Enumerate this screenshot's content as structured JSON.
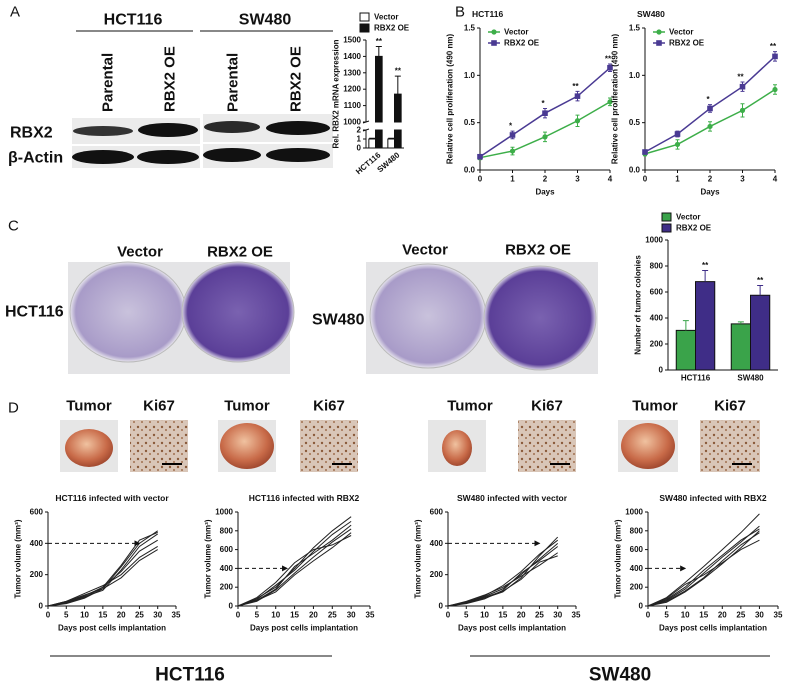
{
  "panel_labels": [
    "A",
    "B",
    "C",
    "D"
  ],
  "blot": {
    "cell_lines": [
      "HCT116",
      "SW480"
    ],
    "columns": [
      "Parental",
      "RBX2 OE",
      "Parental",
      "RBX2 OE"
    ],
    "rows": [
      "RBX2",
      "β-Actin"
    ]
  },
  "colony_assay": {
    "columns": [
      "Vector",
      "RBX2 OE",
      "Vector",
      "RBX2 OE"
    ],
    "rows": [
      "HCT116",
      "SW480"
    ]
  },
  "xenograft": {
    "image_labels": [
      "Tumor",
      "Ki67",
      "Tumor",
      "Ki67",
      "Tumor",
      "Ki67",
      "Tumor",
      "Ki67"
    ],
    "groups": [
      "HCT116",
      "SW480"
    ]
  },
  "chart_data": [
    {
      "type": "bar",
      "y_label": "Rel. RBX2 mRNA expression",
      "categories": [
        "HCT116",
        "SW480"
      ],
      "series": [
        {
          "name": "Vector",
          "color": "#ffffff",
          "values": [
            1,
            1
          ],
          "errors": [
            0.08,
            0.08
          ]
        },
        {
          "name": "RBX2 OE",
          "color": "#111111",
          "values": [
            1400,
            1170
          ],
          "errors": [
            60,
            110
          ],
          "annotations": [
            "**",
            "**"
          ]
        }
      ],
      "ylim_lower": [
        0,
        2
      ],
      "yticks_lower": [
        0,
        1,
        2
      ],
      "ylim": [
        1000,
        1500
      ],
      "yticks": [
        1000,
        1100,
        1200,
        1300,
        1400,
        1500
      ],
      "legend": "top"
    },
    {
      "type": "line",
      "title": "HCT116",
      "x_label": "Days",
      "y_label": "Relative cell proliferation (490 nm)",
      "x": [
        0,
        1,
        2,
        3,
        4
      ],
      "series": [
        {
          "name": "Vector",
          "color": "#3dae49",
          "marker": "circle",
          "values": [
            0.13,
            0.2,
            0.35,
            0.52,
            0.72
          ],
          "errors": [
            0.02,
            0.04,
            0.05,
            0.06,
            0.04
          ]
        },
        {
          "name": "RBX2 OE",
          "color": "#4a3a93",
          "marker": "square",
          "values": [
            0.14,
            0.37,
            0.6,
            0.78,
            1.08
          ],
          "errors": [
            0.02,
            0.04,
            0.05,
            0.05,
            0.04
          ]
        }
      ],
      "annotations": [
        {
          "x": 1,
          "text": "*"
        },
        {
          "x": 2,
          "text": "*"
        },
        {
          "x": 3,
          "text": "**"
        },
        {
          "x": 4,
          "text": "**"
        }
      ],
      "xlim": [
        0,
        4
      ],
      "xticks": [
        0,
        1,
        2,
        3,
        4
      ],
      "ylim": [
        0,
        1.5
      ],
      "yticks": [
        {
          "value": 0,
          "label": "0.0"
        },
        0.5,
        {
          "value": 1,
          "label": "1.0"
        },
        1.5
      ],
      "legend": "upper-left"
    },
    {
      "type": "line",
      "title": "SW480",
      "x_label": "Days",
      "y_label": "Relative cell proliferation (490 nm)",
      "x": [
        0,
        1,
        2,
        3,
        4
      ],
      "series": [
        {
          "name": "Vector",
          "color": "#3dae49",
          "marker": "circle",
          "values": [
            0.17,
            0.27,
            0.46,
            0.63,
            0.85
          ],
          "errors": [
            0.02,
            0.05,
            0.05,
            0.07,
            0.05
          ]
        },
        {
          "name": "RBX2 OE",
          "color": "#4a3a93",
          "marker": "square",
          "values": [
            0.19,
            0.38,
            0.65,
            0.88,
            1.2
          ],
          "errors": [
            0.02,
            0.03,
            0.04,
            0.05,
            0.05
          ]
        }
      ],
      "annotations": [
        {
          "x": 2,
          "text": "*"
        },
        {
          "x": 3,
          "text": "**"
        },
        {
          "x": 4,
          "text": "**"
        }
      ],
      "xlim": [
        0,
        4
      ],
      "xticks": [
        0,
        1,
        2,
        3,
        4
      ],
      "ylim": [
        0,
        1.5
      ],
      "yticks": [
        {
          "value": 0,
          "label": "0.0"
        },
        0.5,
        {
          "value": 1,
          "label": "1.0"
        },
        1.5
      ],
      "legend": "upper-left"
    },
    {
      "type": "bar",
      "y_label": "Number of tumor colonies",
      "categories": [
        "HCT116",
        "SW480"
      ],
      "series": [
        {
          "name": "Vector",
          "color": "#3aa34a",
          "values": [
            305,
            355
          ],
          "errors": [
            75,
            15
          ]
        },
        {
          "name": "RBX2 OE",
          "color": "#3f2d87",
          "values": [
            680,
            575
          ],
          "errors": [
            85,
            75
          ],
          "annotations": [
            "**",
            "**"
          ]
        }
      ],
      "ylim": [
        0,
        1000
      ],
      "yticks": [
        0,
        200,
        400,
        600,
        800,
        1000
      ],
      "legend": "top"
    },
    {
      "type": "line",
      "title": "HCT116 infected with vector",
      "x_label": "Days post cells implantation",
      "y_label": "Tumor volume (mm³)",
      "x": [
        0,
        5,
        10,
        15,
        20,
        25,
        30
      ],
      "series": [
        {
          "color": "#222222",
          "values": [
            0,
            30,
            70,
            110,
            250,
            400,
            480
          ]
        },
        {
          "color": "#222222",
          "values": [
            0,
            25,
            60,
            100,
            230,
            380,
            460
          ]
        },
        {
          "color": "#222222",
          "values": [
            0,
            20,
            55,
            120,
            220,
            350,
            420
          ]
        },
        {
          "color": "#222222",
          "values": [
            0,
            30,
            80,
            130,
            200,
            310,
            380
          ]
        },
        {
          "color": "#222222",
          "values": [
            0,
            15,
            50,
            110,
            180,
            290,
            360
          ]
        },
        {
          "color": "#222222",
          "values": [
            0,
            25,
            65,
            120,
            260,
            420,
            470
          ]
        }
      ],
      "arrow": {
        "y": 400,
        "x_end": 25
      },
      "xlim": [
        0,
        35
      ],
      "xticks": [
        0,
        5,
        10,
        15,
        20,
        25,
        30,
        35
      ],
      "ylim": [
        0,
        600
      ],
      "yticks": [
        0,
        200,
        400,
        600
      ]
    },
    {
      "type": "line",
      "title": "HCT116 infected with RBX2",
      "x_label": "Days post cells implantation",
      "y_label": "Tumor volume (mm³)",
      "x": [
        0,
        5,
        10,
        15,
        20,
        25,
        30
      ],
      "series": [
        {
          "color": "#222222",
          "values": [
            0,
            80,
            200,
            400,
            620,
            800,
            950
          ]
        },
        {
          "color": "#222222",
          "values": [
            0,
            70,
            220,
            380,
            580,
            760,
            900
          ]
        },
        {
          "color": "#222222",
          "values": [
            0,
            60,
            180,
            420,
            560,
            700,
            860
          ]
        },
        {
          "color": "#222222",
          "values": [
            0,
            50,
            170,
            350,
            520,
            680,
            820
          ]
        },
        {
          "color": "#222222",
          "values": [
            0,
            90,
            250,
            460,
            600,
            650,
            750
          ]
        },
        {
          "color": "#222222",
          "values": [
            0,
            60,
            150,
            330,
            480,
            620,
            780
          ]
        }
      ],
      "arrow": {
        "y": 400,
        "x_end": 13
      },
      "xlim": [
        0,
        35
      ],
      "xticks": [
        0,
        5,
        10,
        15,
        20,
        25,
        30,
        35
      ],
      "ylim": [
        0,
        1000
      ],
      "yticks": [
        0,
        200,
        400,
        600,
        800,
        1000
      ]
    },
    {
      "type": "line",
      "title": "SW480 infected with vector",
      "x_label": "Days post cells implantation",
      "y_label": "Tumor volume (mm³)",
      "x": [
        0,
        5,
        10,
        15,
        20,
        25,
        30
      ],
      "series": [
        {
          "color": "#222222",
          "values": [
            0,
            20,
            50,
            90,
            180,
            320,
            440
          ]
        },
        {
          "color": "#222222",
          "values": [
            0,
            25,
            60,
            110,
            200,
            300,
            400
          ]
        },
        {
          "color": "#222222",
          "values": [
            0,
            15,
            45,
            100,
            210,
            290,
            380
          ]
        },
        {
          "color": "#222222",
          "values": [
            0,
            30,
            70,
            120,
            190,
            260,
            340
          ]
        },
        {
          "color": "#222222",
          "values": [
            0,
            20,
            55,
            95,
            170,
            280,
            320
          ]
        },
        {
          "color": "#222222",
          "values": [
            0,
            25,
            65,
            130,
            220,
            330,
            420
          ]
        }
      ],
      "arrow": {
        "y": 400,
        "x_end": 25
      },
      "xlim": [
        0,
        35
      ],
      "xticks": [
        0,
        5,
        10,
        15,
        20,
        25,
        30,
        35
      ],
      "ylim": [
        0,
        600
      ],
      "yticks": [
        0,
        200,
        400,
        600
      ]
    },
    {
      "type": "line",
      "title": "SW480 infected with RBX2",
      "x_label": "Days post cells implantation",
      "y_label": "Tumor volume (mm³)",
      "x": [
        0,
        5,
        10,
        15,
        20,
        25,
        30
      ],
      "series": [
        {
          "color": "#222222",
          "values": [
            0,
            90,
            250,
            420,
            600,
            780,
            980
          ]
        },
        {
          "color": "#222222",
          "values": [
            0,
            60,
            180,
            350,
            520,
            680,
            850
          ]
        },
        {
          "color": "#222222",
          "values": [
            0,
            70,
            200,
            380,
            540,
            700,
            820
          ]
        },
        {
          "color": "#222222",
          "values": [
            0,
            50,
            160,
            300,
            480,
            650,
            780
          ]
        },
        {
          "color": "#222222",
          "values": [
            0,
            80,
            230,
            330,
            460,
            600,
            700
          ]
        },
        {
          "color": "#222222",
          "values": [
            0,
            40,
            150,
            290,
            450,
            620,
            800
          ]
        }
      ],
      "arrow": {
        "y": 400,
        "x_end": 10
      },
      "xlim": [
        0,
        35
      ],
      "xticks": [
        0,
        5,
        10,
        15,
        20,
        25,
        30,
        35
      ],
      "ylim": [
        0,
        1000
      ],
      "yticks": [
        0,
        200,
        400,
        600,
        800,
        1000
      ]
    }
  ]
}
